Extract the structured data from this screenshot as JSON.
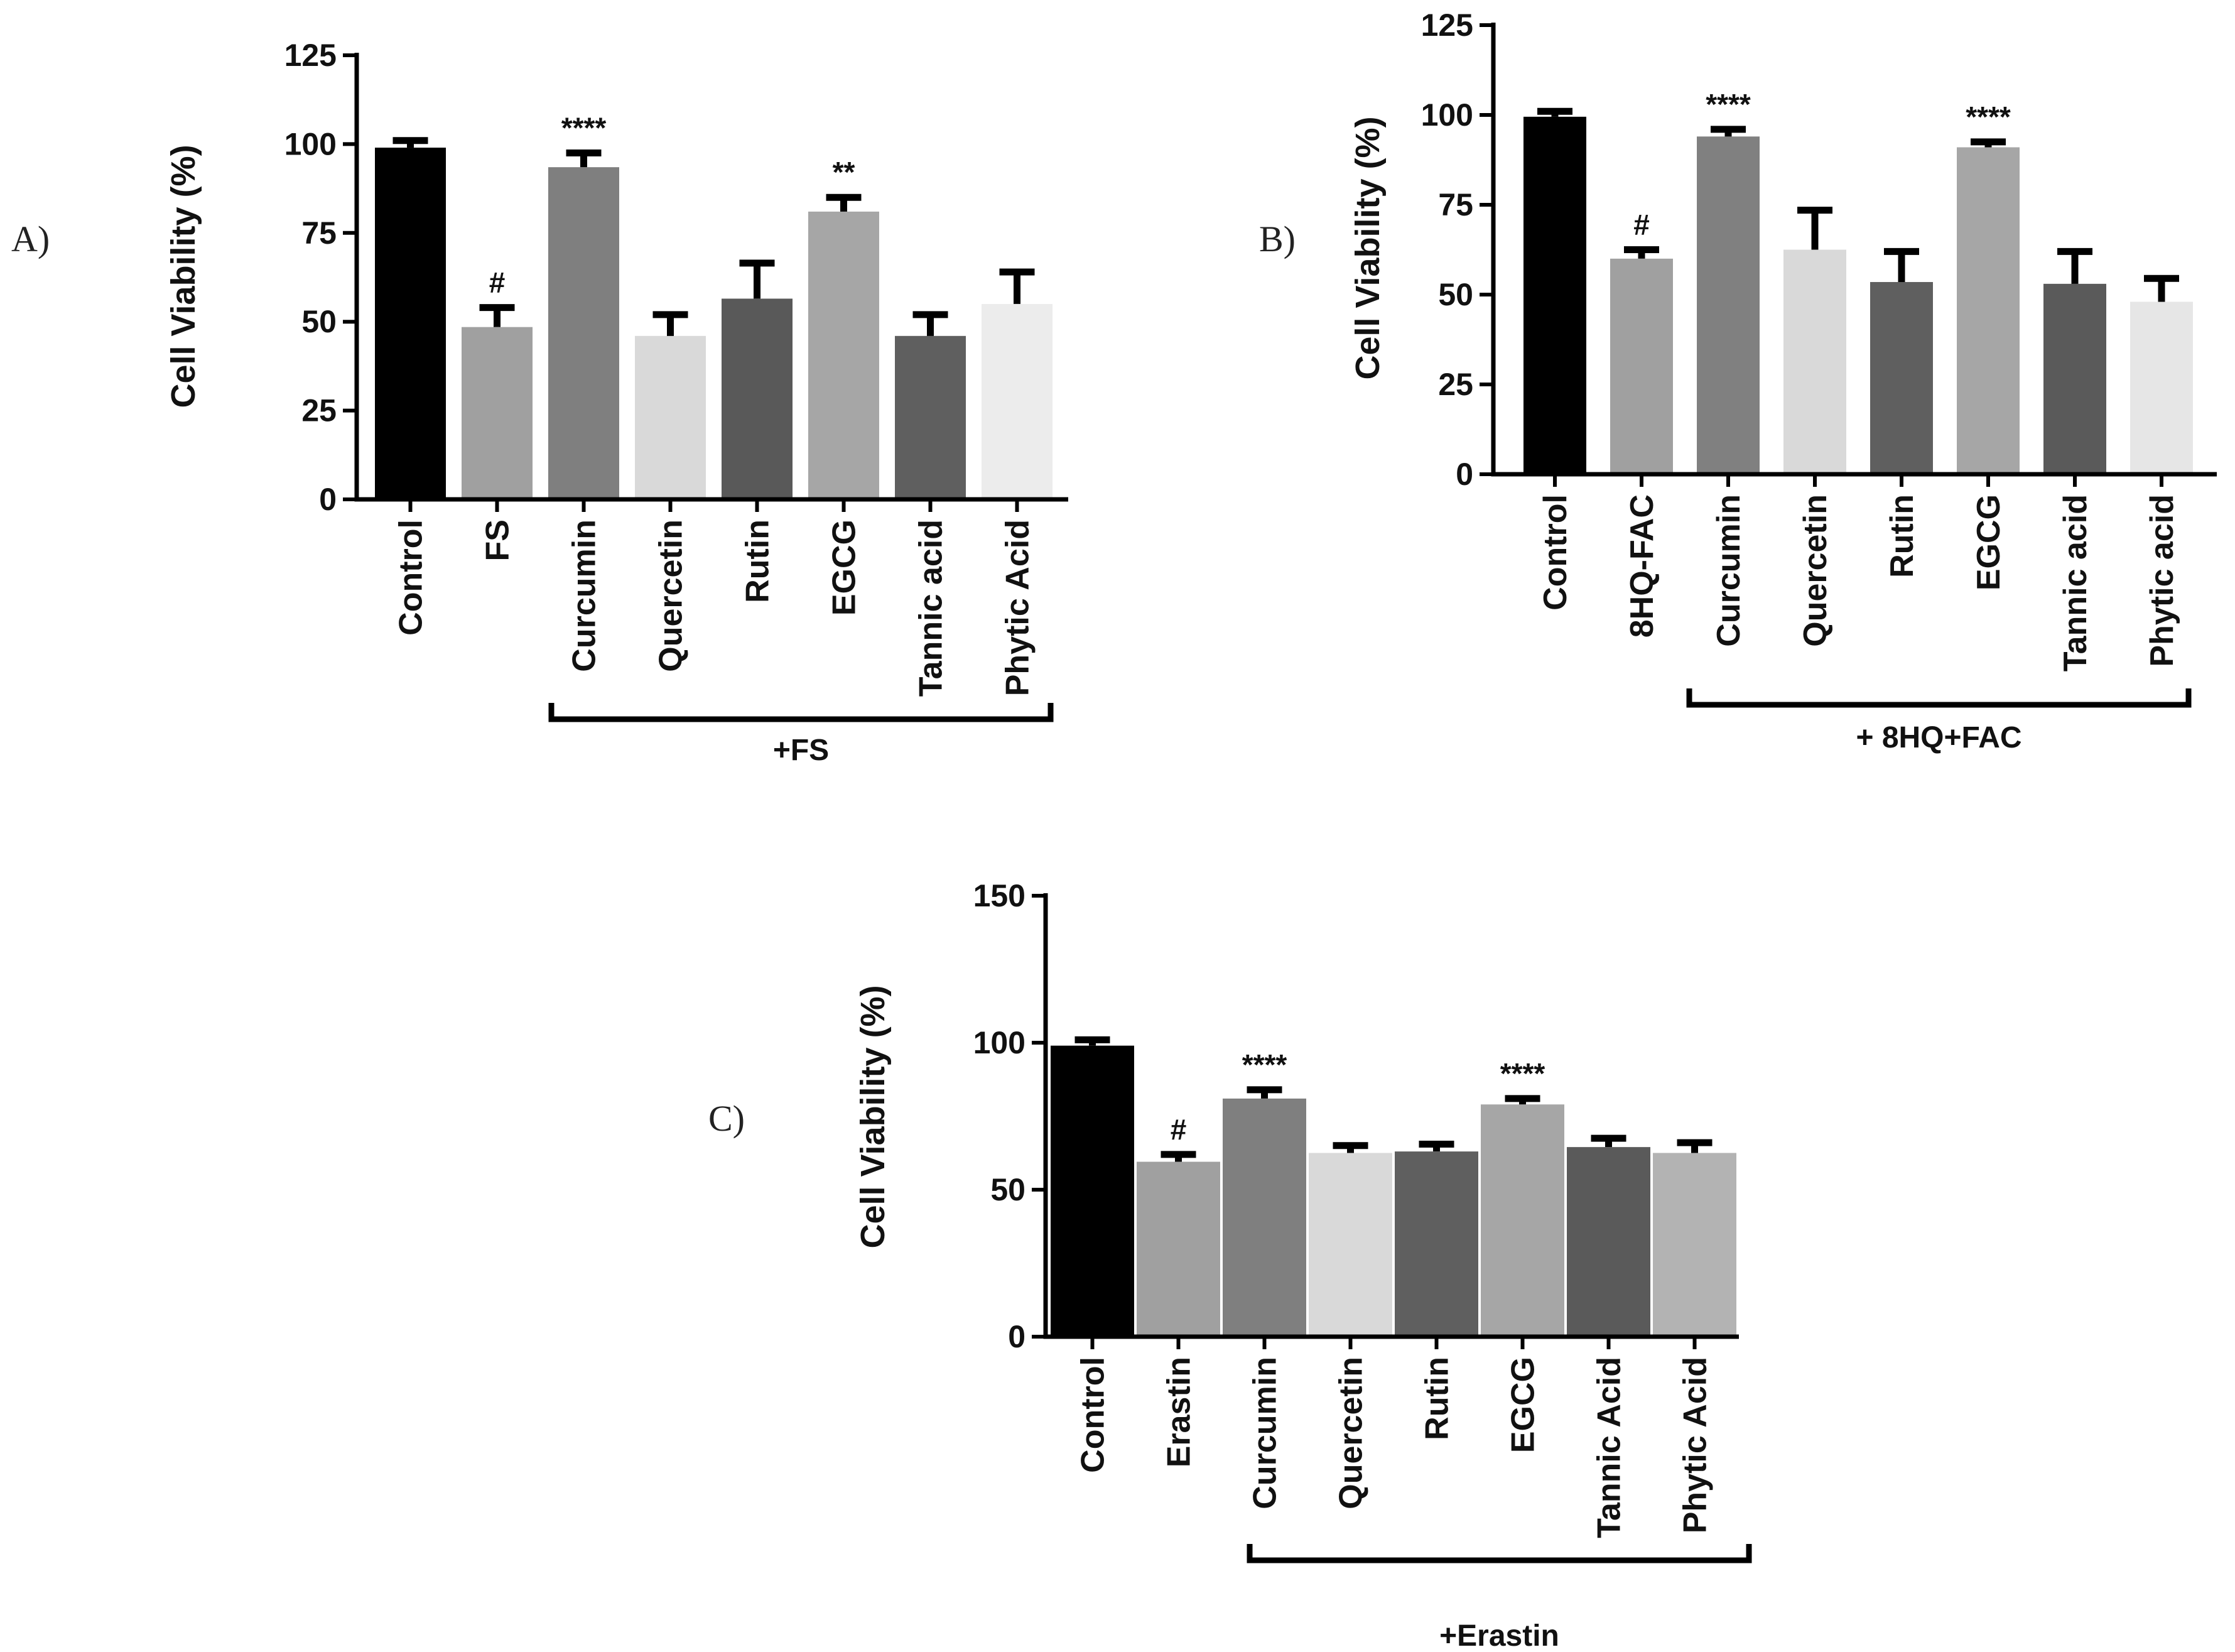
{
  "chart_data": [
    {
      "type": "bar",
      "panel_label": "A)",
      "title": "",
      "xlabel": "",
      "ylabel": "Cell Viability (%)",
      "ylim": [
        0,
        125
      ],
      "yticks": [
        "0",
        "25",
        "50",
        "75",
        "100",
        "125"
      ],
      "categories": [
        "Control",
        "FS",
        "Curcumin",
        "Quercetin",
        "Rutin",
        "EGCG",
        "Tannic acid",
        "Phytic Acid"
      ],
      "values": [
        99,
        48.5,
        93.5,
        46,
        56.5,
        81,
        46,
        55
      ],
      "errors": [
        2,
        5.5,
        4,
        6,
        10,
        4,
        6,
        9
      ],
      "colors": [
        "#000000",
        "#a0a0a0",
        "#7f7f7f",
        "#d9d9d9",
        "#595959",
        "#a6a6a6",
        "#5f5f5f",
        "#ececec"
      ],
      "significance": [
        "",
        "#",
        "****",
        "",
        "",
        "**",
        "",
        ""
      ],
      "bracket": {
        "label": "+FS",
        "from": 2,
        "to": 7
      }
    },
    {
      "type": "bar",
      "panel_label": "B)",
      "title": "",
      "xlabel": "",
      "ylabel": "Cell Viability (%)",
      "ylim": [
        0,
        125
      ],
      "yticks": [
        "0",
        "25",
        "50",
        "75",
        "100",
        "125"
      ],
      "categories": [
        "Control",
        "8HQ-FAC",
        "Curcumin",
        "Quercetin",
        "Rutin",
        "EGCG",
        "Tannic acid",
        "Phytic acid"
      ],
      "values": [
        99.5,
        60,
        94,
        62.5,
        53.5,
        91,
        53,
        48
      ],
      "errors": [
        1.5,
        2.5,
        2,
        11,
        8.5,
        1.5,
        9,
        6.5
      ],
      "colors": [
        "#000000",
        "#a0a0a0",
        "#808080",
        "#d9d9d9",
        "#5f5f5f",
        "#a6a6a6",
        "#5a5a5a",
        "#e6e6e6"
      ],
      "significance": [
        "",
        "#",
        "****",
        "",
        "",
        "****",
        "",
        ""
      ],
      "bracket": {
        "label": "+  8HQ+FAC",
        "from": 2,
        "to": 7
      }
    },
    {
      "type": "bar",
      "panel_label": "C)",
      "title": "",
      "xlabel": "",
      "ylabel": "Cell Viability (%)",
      "ylim": [
        0,
        150
      ],
      "yticks": [
        "0",
        "50",
        "100",
        "150"
      ],
      "categories": [
        "Control",
        "Erastin",
        "Curcumin",
        "Quercetin",
        "Rutin",
        "EGCG",
        "Tannic Acid",
        "Phytic Acid"
      ],
      "values": [
        99,
        59.5,
        81,
        62.5,
        63,
        79,
        64.5,
        62.5
      ],
      "errors": [
        2,
        2.5,
        3,
        2.5,
        2.5,
        2,
        3,
        3.5
      ],
      "colors": [
        "#000000",
        "#a0a0a0",
        "#7f7f7f",
        "#d9d9d9",
        "#5f5f5f",
        "#a6a6a6",
        "#5a5a5a",
        "#b3b3b3"
      ],
      "significance": [
        "",
        "#",
        "****",
        "",
        "",
        "****",
        "",
        ""
      ],
      "bracket": {
        "label": "+Erastin",
        "from": 2,
        "to": 7
      }
    }
  ]
}
